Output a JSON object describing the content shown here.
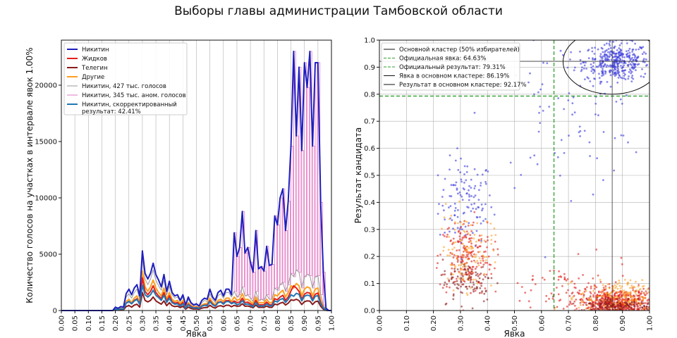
{
  "title": "Выборы главы администрации Тамбовской области",
  "chart_data": [
    {
      "type": "line",
      "xlabel": "Явка",
      "ylabel": "Количество голосов на участках в интервале явок 1.00%",
      "xlim": [
        0,
        1
      ],
      "ylim": [
        0,
        24000
      ],
      "xticks": [
        "0.00",
        "0.05",
        "0.10",
        "0.15",
        "0.20",
        "0.25",
        "0.30",
        "0.35",
        "0.40",
        "0.45",
        "0.50",
        "0.55",
        "0.60",
        "0.65",
        "0.70",
        "0.75",
        "0.80",
        "0.85",
        "0.90",
        "0.95",
        "1.00"
      ],
      "yticks": [
        "0",
        "5000",
        "10000",
        "15000",
        "20000"
      ],
      "grid": true,
      "legend_position": "top-left",
      "x": [
        0.2,
        0.21,
        0.22,
        0.23,
        0.24,
        0.25,
        0.26,
        0.27,
        0.28,
        0.29,
        0.3,
        0.31,
        0.32,
        0.33,
        0.34,
        0.35,
        0.36,
        0.37,
        0.38,
        0.39,
        0.4,
        0.41,
        0.42,
        0.43,
        0.44,
        0.45,
        0.46,
        0.47,
        0.48,
        0.49,
        0.5,
        0.51,
        0.52,
        0.53,
        0.54,
        0.55,
        0.56,
        0.57,
        0.58,
        0.59,
        0.6,
        0.61,
        0.62,
        0.63,
        0.64,
        0.65,
        0.66,
        0.67,
        0.68,
        0.69,
        0.7,
        0.71,
        0.72,
        0.73,
        0.74,
        0.75,
        0.76,
        0.77,
        0.78,
        0.79,
        0.8,
        0.81,
        0.82,
        0.83,
        0.84,
        0.85,
        0.86,
        0.87,
        0.88,
        0.89,
        0.9,
        0.91,
        0.92,
        0.93,
        0.94,
        0.95,
        0.96,
        0.97,
        0.98,
        0.99,
        1.0
      ],
      "series": [
        {
          "name": "Никитин",
          "color": "#1f1fbf",
          "width": 2,
          "values": [
            300,
            200,
            350,
            300,
            1500,
            1900,
            1400,
            2000,
            2300,
            1300,
            5300,
            3300,
            2800,
            3300,
            4200,
            3200,
            2700,
            2100,
            3200,
            1700,
            2600,
            1600,
            1300,
            1400,
            900,
            1400,
            500,
            1200,
            700,
            500,
            600,
            400,
            900,
            1100,
            1000,
            1900,
            1200,
            900,
            1600,
            1800,
            1300,
            1900,
            1900,
            1400,
            6900,
            4800,
            5600,
            8800,
            5100,
            5600,
            4300,
            3400,
            7100,
            3700,
            3900,
            3500,
            5700,
            4000,
            4100,
            8400,
            7600,
            10000,
            10800,
            7100,
            9700,
            14600,
            23000,
            15500,
            21600,
            14200,
            22000,
            19800,
            23000,
            14600,
            22000,
            22000,
            9600,
            3400,
            200,
            0,
            0
          ]
        },
        {
          "name": "Никитин, 427 тыс. голосов",
          "color": "#999999",
          "width": 1,
          "values": [
            250,
            150,
            300,
            250,
            1200,
            1500,
            1100,
            1600,
            1900,
            1000,
            4600,
            2800,
            2300,
            2800,
            3600,
            2700,
            2200,
            1800,
            2700,
            1400,
            2200,
            1400,
            1100,
            1200,
            800,
            1200,
            400,
            1000,
            600,
            400,
            500,
            350,
            700,
            900,
            800,
            1500,
            1000,
            700,
            1300,
            1500,
            1100,
            1600,
            1600,
            1200,
            1700,
            1200,
            1400,
            2100,
            1300,
            1400,
            1100,
            800,
            1700,
            900,
            1000,
            900,
            1400,
            1000,
            1000,
            2000,
            1800,
            2300,
            2500,
            1700,
            2300,
            3300,
            3000,
            3600,
            3400,
            2000,
            3000,
            3200,
            3100,
            2000,
            3000,
            3100,
            1400,
            500,
            100,
            0,
            0
          ]
        },
        {
          "name": "Другие",
          "color": "#ff9f1f",
          "width": 2,
          "values": [
            150,
            100,
            180,
            150,
            800,
            1000,
            700,
            1100,
            1300,
            700,
            3500,
            2100,
            1700,
            2100,
            2700,
            2000,
            1600,
            1300,
            2000,
            1000,
            1600,
            1000,
            800,
            900,
            600,
            900,
            300,
            700,
            450,
            300,
            350,
            250,
            500,
            600,
            600,
            1100,
            700,
            500,
            900,
            1000,
            800,
            1100,
            1100,
            800,
            1200,
            900,
            1000,
            1500,
            950,
            1000,
            800,
            600,
            1200,
            700,
            700,
            700,
            1000,
            700,
            700,
            1400,
            1300,
            1600,
            1800,
            1200,
            1600,
            2200,
            2000,
            2400,
            2200,
            1300,
            1900,
            2100,
            2000,
            1300,
            1900,
            2000,
            900,
            300,
            50,
            0,
            0
          ]
        },
        {
          "name": "Жидков",
          "color": "#e3201b",
          "width": 2,
          "values": [
            120,
            80,
            150,
            120,
            650,
            800,
            600,
            900,
            1050,
            550,
            2900,
            1700,
            1400,
            1700,
            2200,
            1600,
            1300,
            1050,
            1600,
            800,
            1300,
            800,
            650,
            720,
            480,
            720,
            250,
            560,
            360,
            240,
            280,
            200,
            400,
            480,
            480,
            880,
            560,
            400,
            720,
            800,
            640,
            880,
            880,
            640,
            850,
            700,
            750,
            1100,
            700,
            750,
            600,
            450,
            900,
            520,
            520,
            520,
            750,
            520,
            520,
            1050,
            950,
            1200,
            1350,
            900,
            1200,
            1750,
            2200,
            2000,
            1700,
            1000,
            1450,
            1600,
            1550,
            1000,
            1450,
            1550,
            700,
            230,
            40,
            0,
            0
          ]
        },
        {
          "name": "Телегин",
          "color": "#8b1a1a",
          "width": 2,
          "values": [
            60,
            40,
            80,
            60,
            350,
            450,
            300,
            480,
            560,
            300,
            1600,
            900,
            760,
            900,
            1200,
            860,
            700,
            560,
            860,
            430,
            700,
            430,
            350,
            390,
            260,
            390,
            130,
            300,
            190,
            130,
            150,
            110,
            210,
            260,
            260,
            470,
            300,
            210,
            390,
            430,
            340,
            470,
            470,
            340,
            460,
            380,
            400,
            600,
            380,
            400,
            330,
            250,
            490,
            280,
            280,
            280,
            400,
            280,
            280,
            570,
            510,
            650,
            730,
            490,
            650,
            950,
            900,
            1000,
            880,
            540,
            780,
            860,
            840,
            540,
            780,
            840,
            380,
            120,
            20,
            0,
            0
          ]
        },
        {
          "name": "Никитин, скорректированный результат: 42.41%",
          "color": "#1f77b4",
          "width": 2,
          "values": [
            130,
            90,
            150,
            130,
            650,
            810,
            600,
            850,
            980,
            560,
            2250,
            1400,
            1200,
            1400,
            1800,
            1360,
            1150,
            900,
            1360,
            720,
            1100,
            700,
            560,
            600,
            380,
            600,
            210,
            510,
            300,
            210,
            250,
            170,
            380,
            470,
            420,
            800,
            510,
            380,
            680,
            760,
            560,
            800,
            800,
            600,
            720,
            510,
            590,
            890,
            550,
            590,
            470,
            340,
            720,
            380,
            420,
            380,
            590,
            420,
            420,
            850,
            760,
            980,
            1060,
            720,
            980,
            1400,
            1270,
            1530,
            1440,
            850,
            1270,
            1360,
            1320,
            850,
            1270,
            1320,
            590,
            210,
            40,
            0,
            0
          ]
        }
      ],
      "bars": {
        "name": "Никитин, 345 тыс. аном. голосов",
        "color": "#e377c2",
        "from_x": 0.64,
        "to_x": 0.97
      }
    },
    {
      "type": "scatter",
      "xlabel": "Явка",
      "ylabel": "Результат кандидата",
      "xlim": [
        0,
        1
      ],
      "ylim": [
        0,
        1
      ],
      "xticks": [
        "0.00",
        "0.10",
        "0.20",
        "0.30",
        "0.40",
        "0.50",
        "0.60",
        "0.70",
        "0.80",
        "0.90",
        "1.00"
      ],
      "yticks": [
        "0.0",
        "0.1",
        "0.2",
        "0.3",
        "0.4",
        "0.5",
        "0.6",
        "0.7",
        "0.8",
        "0.9",
        "1.0"
      ],
      "grid": true,
      "legend_position": "top-left",
      "legend": [
        {
          "label": "Основной кластер (50% избирателей)",
          "color": "#111111",
          "style": "solid"
        },
        {
          "label": "Официальная явка: 64.63%",
          "color": "#2ca02c",
          "style": "dashed"
        },
        {
          "label": "Официальный результат: 79.31%",
          "color": "#2ca02c",
          "style": "dashed"
        },
        {
          "label": "Явка в основном кластере: 86.19%",
          "color": "#111111",
          "style": "solid"
        },
        {
          "label": "Результат в основном кластере: 92.17%",
          "color": "#111111",
          "style": "solid"
        }
      ],
      "official_turnout": 0.6463,
      "official_result": 0.7931,
      "cluster_turnout": 0.8619,
      "cluster_result": 0.9217,
      "cluster_ellipse": {
        "cx": 0.86,
        "cy": 0.92,
        "rx": 0.18,
        "ry": 0.12
      },
      "series": [
        {
          "name": "Никитин",
          "color": "#3b3bdd",
          "clusters": [
            {
              "x": [
                0.32,
                0.05
              ],
              "y": [
                0.4,
                0.08
              ],
              "n": 120
            },
            {
              "x": [
                0.88,
                0.06
              ],
              "y": [
                0.92,
                0.035
              ],
              "n": 380
            },
            {
              "x": [
                0.7,
                0.15
              ],
              "y": [
                0.72,
                0.13
              ],
              "n": 80
            }
          ]
        },
        {
          "name": "Жидков",
          "color": "#e3201b",
          "clusters": [
            {
              "x": [
                0.32,
                0.05
              ],
              "y": [
                0.2,
                0.07
              ],
              "n": 200
            },
            {
              "x": [
                0.88,
                0.07
              ],
              "y": [
                0.03,
                0.025
              ],
              "n": 500
            },
            {
              "x": [
                0.7,
                0.12
              ],
              "y": [
                0.08,
                0.05
              ],
              "n": 80
            }
          ]
        },
        {
          "name": "Другие",
          "color": "#ff9f1f",
          "clusters": [
            {
              "x": [
                0.32,
                0.05
              ],
              "y": [
                0.22,
                0.07
              ],
              "n": 120
            },
            {
              "x": [
                0.88,
                0.07
              ],
              "y": [
                0.05,
                0.03
              ],
              "n": 200
            }
          ]
        },
        {
          "name": "Телегин",
          "color": "#8b1a1a",
          "clusters": [
            {
              "x": [
                0.33,
                0.05
              ],
              "y": [
                0.11,
                0.04
              ],
              "n": 100
            },
            {
              "x": [
                0.88,
                0.07
              ],
              "y": [
                0.02,
                0.015
              ],
              "n": 150
            }
          ]
        }
      ]
    }
  ]
}
